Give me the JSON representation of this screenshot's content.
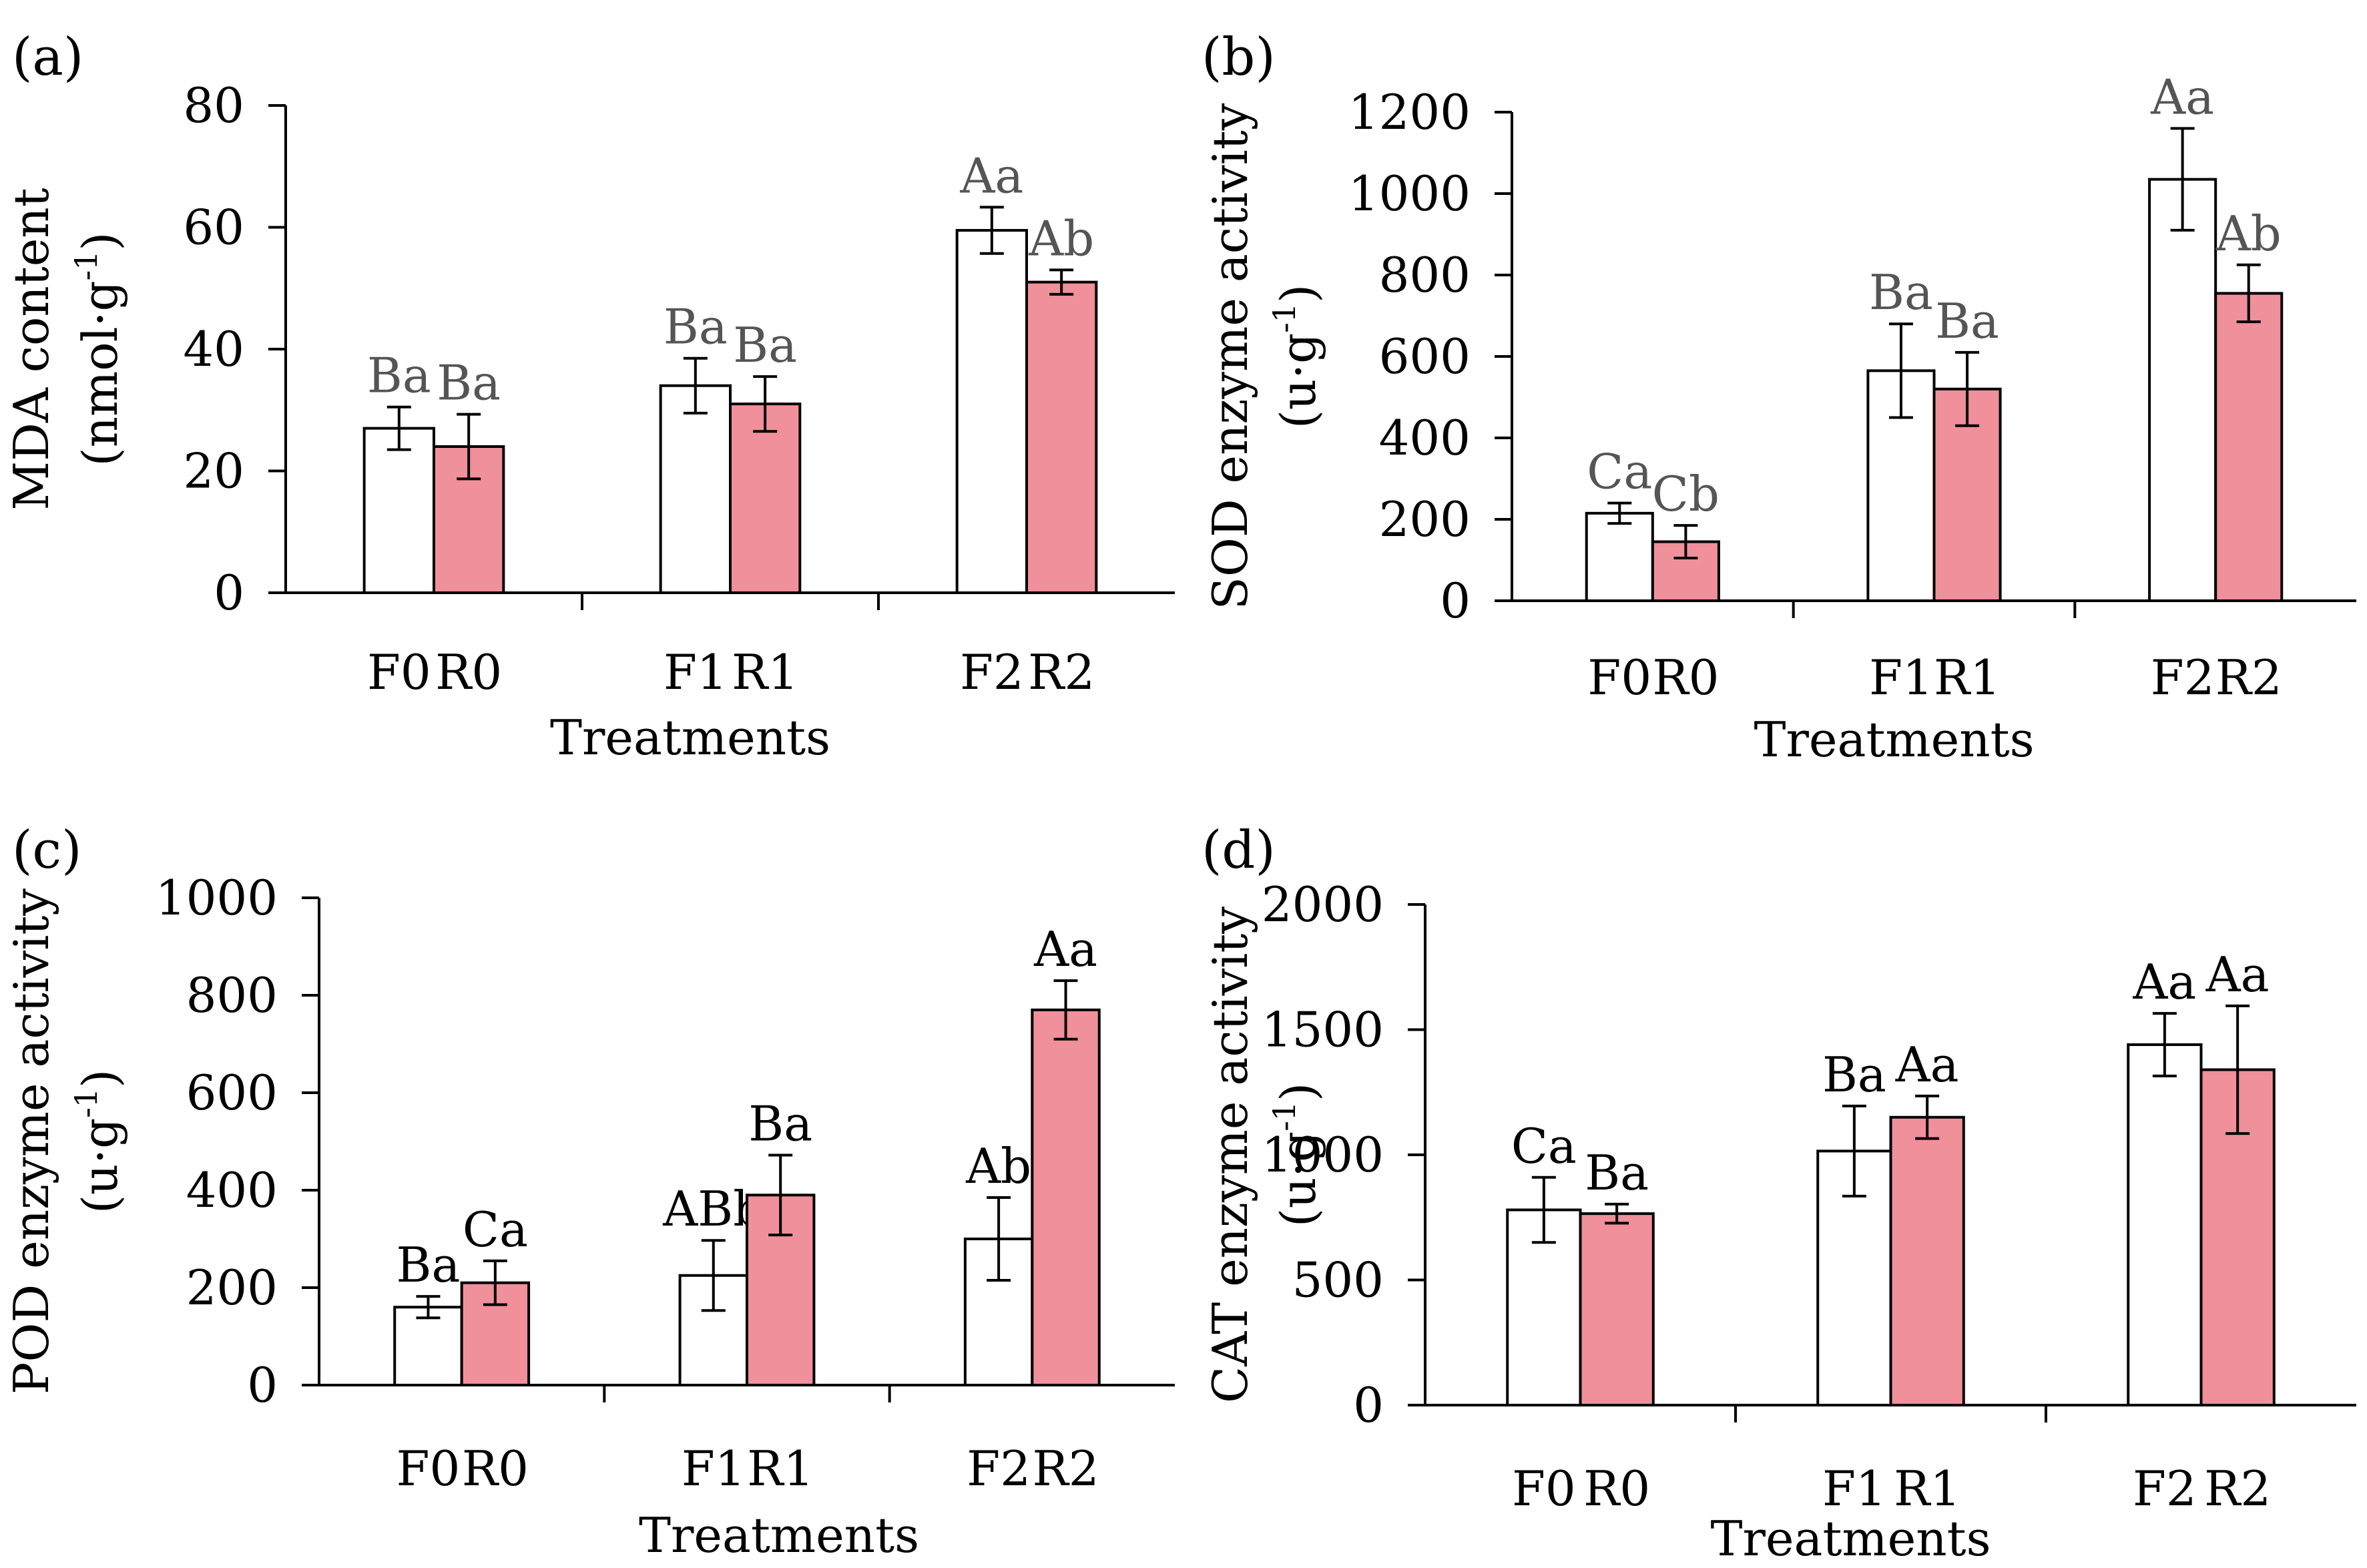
{
  "colors": {
    "series_F": "#ffffff",
    "series_R": "#f0909a",
    "outline": "#000000",
    "sig_text_top": "#555555",
    "sig_text_bottom": "#000000"
  },
  "chart_data": [
    {
      "panel_label": "(a)",
      "type": "bar",
      "ylabel": "MDA content",
      "yunit": "(nmol·g",
      "yunit_sup": "-1",
      "yunit_close": ")",
      "xlabel": "Treatments",
      "ylim": [
        0,
        80
      ],
      "yticks": [
        0,
        20,
        40,
        60,
        80
      ],
      "groups": [
        {
          "labels": [
            "F0",
            "R0"
          ],
          "values": [
            27,
            24
          ],
          "errors": [
            3.5,
            5.3
          ],
          "sig": [
            "Ba",
            "Ba"
          ]
        },
        {
          "labels": [
            "F1",
            "R1"
          ],
          "values": [
            34,
            31
          ],
          "errors": [
            4.5,
            4.5
          ],
          "sig": [
            "Ba",
            "Ba"
          ]
        },
        {
          "labels": [
            "F2",
            "R2"
          ],
          "values": [
            59.5,
            51
          ],
          "errors": [
            3.8,
            2.0
          ],
          "sig": [
            "Aa",
            "Ab"
          ]
        }
      ]
    },
    {
      "panel_label": "(b)",
      "type": "bar",
      "ylabel": "SOD enzyme activity",
      "yunit": "(u·g",
      "yunit_sup": "-1",
      "yunit_close": ")",
      "xlabel": "Treatments",
      "ylim": [
        0,
        1200
      ],
      "yticks": [
        0,
        200,
        400,
        600,
        800,
        1000,
        1200
      ],
      "groups": [
        {
          "labels": [
            "F0",
            "R0"
          ],
          "values": [
            215,
            145
          ],
          "errors": [
            25,
            40
          ],
          "sig": [
            "Ca",
            "Cb"
          ]
        },
        {
          "labels": [
            "F1",
            "R1"
          ],
          "values": [
            565,
            520
          ],
          "errors": [
            115,
            90
          ],
          "sig": [
            "Ba",
            "Ba"
          ]
        },
        {
          "labels": [
            "F2",
            "R2"
          ],
          "values": [
            1035,
            755
          ],
          "errors": [
            125,
            70
          ],
          "sig": [
            "Aa",
            "Ab"
          ]
        }
      ]
    },
    {
      "panel_label": "(c)",
      "type": "bar",
      "ylabel": "POD enzyme activity",
      "yunit": "(u·g",
      "yunit_sup": "-1",
      "yunit_close": ")",
      "xlabel": "Treatments",
      "ylim": [
        0,
        1000
      ],
      "yticks": [
        0,
        200,
        400,
        600,
        800,
        1000
      ],
      "groups": [
        {
          "labels": [
            "F0",
            "R0"
          ],
          "values": [
            160,
            210
          ],
          "errors": [
            22,
            45
          ],
          "sig": [
            "Ba",
            "Ca"
          ]
        },
        {
          "labels": [
            "F1",
            "R1"
          ],
          "values": [
            225,
            390
          ],
          "errors": [
            72,
            82
          ],
          "sig": [
            "ABb",
            "Ba"
          ]
        },
        {
          "labels": [
            "F2",
            "R2"
          ],
          "values": [
            300,
            770
          ],
          "errors": [
            85,
            60
          ],
          "sig": [
            "Ab",
            "Aa"
          ]
        }
      ]
    },
    {
      "panel_label": "(d)",
      "type": "bar",
      "ylabel": "CAT enzyme activity",
      "yunit": "(u·g",
      "yunit_sup": "-1",
      "yunit_close": ")",
      "xlabel": "Treatments",
      "ylim": [
        0,
        2000
      ],
      "yticks": [
        0,
        500,
        1000,
        1500,
        2000
      ],
      "groups": [
        {
          "labels": [
            "F0",
            "R0"
          ],
          "values": [
            780,
            765
          ],
          "errors": [
            130,
            38
          ],
          "sig": [
            "Ca",
            "Ba"
          ]
        },
        {
          "labels": [
            "F1",
            "R1"
          ],
          "values": [
            1015,
            1150
          ],
          "errors": [
            180,
            85
          ],
          "sig": [
            "Ba",
            "Aa"
          ]
        },
        {
          "labels": [
            "F2",
            "R2"
          ],
          "values": [
            1440,
            1340
          ],
          "errors": [
            125,
            255
          ],
          "sig": [
            "Aa",
            "Aa"
          ]
        }
      ]
    }
  ]
}
